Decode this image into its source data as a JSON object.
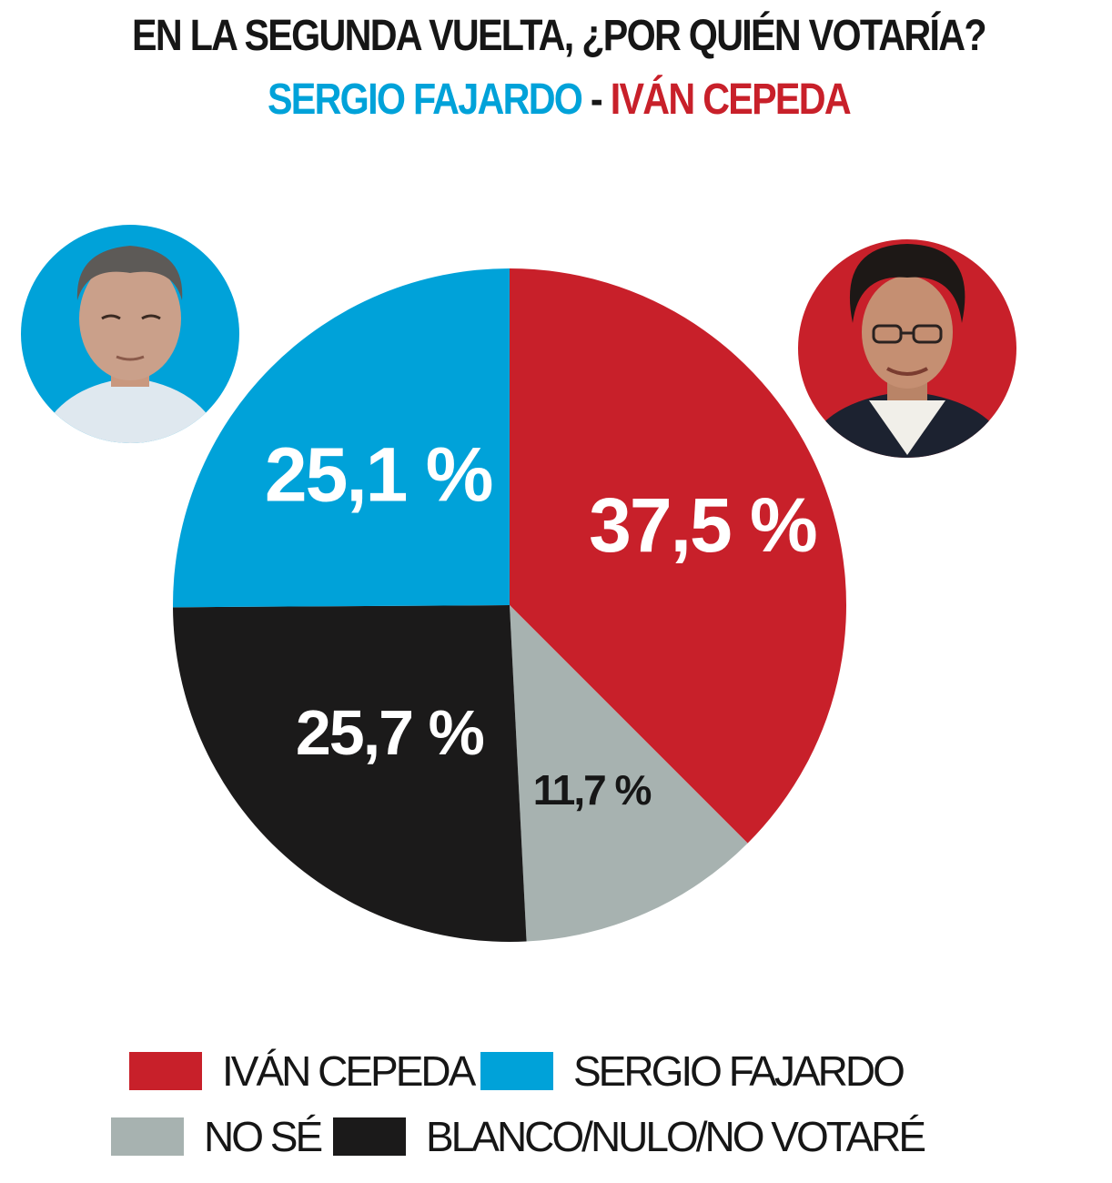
{
  "header": {
    "title": "EN LA SEGUNDA VUELTA, ¿POR QUIÉN VOTARÍA?",
    "subtitle_a": "SERGIO FAJARDO",
    "subtitle_sep": " - ",
    "subtitle_b": "IVÁN CEPEDA"
  },
  "colors": {
    "cepeda": "#c8202a",
    "fajardo": "#00a2d9",
    "nose": "#a7b2b0",
    "blanco": "#1b1a1a",
    "text_dark": "#161616"
  },
  "chart_data": {
    "type": "pie",
    "title": "EN LA SEGUNDA VUELTA, ¿POR QUIÉN VOTARÍA?",
    "slices": [
      {
        "name": "IVÁN CEPEDA",
        "value": 37.5,
        "label": "37,5 %",
        "color": "#c8202a",
        "label_color": "#ffffff"
      },
      {
        "name": "NO SÉ",
        "value": 11.7,
        "label": "11,7 %",
        "color": "#a7b2b0",
        "label_color": "#161616"
      },
      {
        "name": "BLANCO/NULO/NO VOTARÉ",
        "value": 25.7,
        "label": "25,7 %",
        "color": "#1b1a1a",
        "label_color": "#ffffff"
      },
      {
        "name": "SERGIO FAJARDO",
        "value": 25.1,
        "label": "25,1 %",
        "color": "#00a2d9",
        "label_color": "#ffffff"
      }
    ],
    "start": "12 o'clock, clockwise",
    "legend_position": "bottom"
  },
  "legend": [
    {
      "label": "IVÁN CEPEDA",
      "color": "#c8202a"
    },
    {
      "label": "SERGIO FAJARDO",
      "color": "#00a2d9"
    },
    {
      "label": "NO SÉ",
      "color": "#a7b2b0"
    },
    {
      "label": "BLANCO/NULO/NO VOTARÉ",
      "color": "#1b1a1a"
    }
  ],
  "photos": {
    "left_icon": "portrait-fajardo",
    "right_icon": "portrait-cepeda"
  }
}
